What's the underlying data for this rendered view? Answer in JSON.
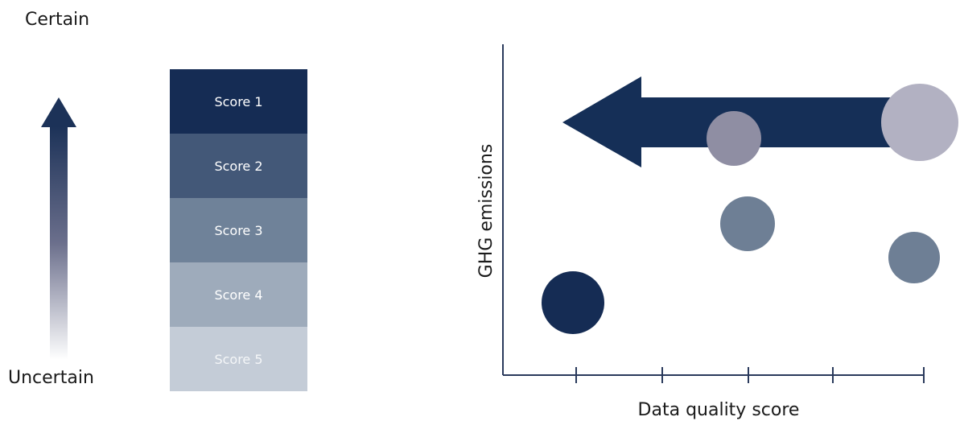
{
  "certainty": {
    "top_label": "Certain",
    "bottom_label": "Uncertain"
  },
  "scores": [
    {
      "label": "Score 1",
      "color": "#152c54",
      "text_color": "#ffffff"
    },
    {
      "label": "Score 2",
      "color": "#435878",
      "text_color": "#ffffff"
    },
    {
      "label": "Score 3",
      "color": "#6f8299",
      "text_color": "#ffffff"
    },
    {
      "label": "Score 4",
      "color": "#9eabbb",
      "text_color": "#ffffff"
    },
    {
      "label": "Score 5",
      "color": "#c4ccd7",
      "text_color": "#f4f6f8"
    }
  ],
  "plot": {
    "y_label": "GHG emissions",
    "x_label": "Data quality score",
    "arrow_color": "#152f57",
    "bubble_colors": [
      "#152c54",
      "#6e7f95",
      "#8f8ea3",
      "#b2b1c2"
    ]
  }
}
